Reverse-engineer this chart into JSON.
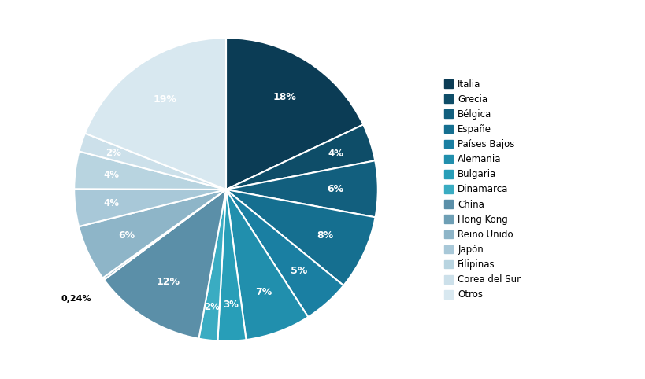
{
  "labels": [
    "Italia",
    "Grecia",
    "Bélgica",
    "Españe",
    "Países Bajos",
    "Alemania",
    "Bulgaria",
    "Dinamarca",
    "China",
    "Hong Kong",
    "Reino Unido",
    "Japón",
    "Filipinas",
    "Corea del Sur",
    "Otros"
  ],
  "values": [
    18,
    4,
    6,
    8,
    5,
    7,
    3,
    2,
    12,
    0.24,
    6,
    4,
    4,
    2,
    19
  ],
  "colors": [
    "#0b3c55",
    "#0e4d68",
    "#125f7e",
    "#156f90",
    "#1a7fa2",
    "#218fad",
    "#289eb8",
    "#3aacc2",
    "#5b8fa8",
    "#6e9fb5",
    "#8eb5c8",
    "#a8c8d8",
    "#b8d4e0",
    "#cce0ea",
    "#d8e8f0"
  ],
  "pct_labels": [
    "18%",
    "4%",
    "6%",
    "8%",
    "5%",
    "7%",
    "3%",
    "2%",
    "12%",
    "0,24%",
    "6%",
    "4%",
    "4%",
    "2%",
    "19%"
  ],
  "label_colors": [
    "white",
    "white",
    "white",
    "white",
    "white",
    "white",
    "white",
    "white",
    "white",
    "black",
    "white",
    "white",
    "white",
    "white",
    "white"
  ],
  "background_color": "#ffffff",
  "wedge_linewidth": 1.5,
  "wedge_edgecolor": "white"
}
